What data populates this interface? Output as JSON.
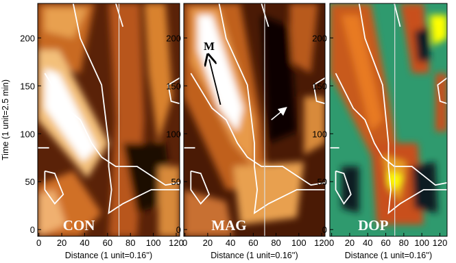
{
  "chart_data": [
    {
      "type": "heatmap",
      "title": "CON",
      "xlabel": "Distance (1 unit=0.16'')",
      "ylabel": "Time (1 unit=2.5 min)",
      "xlim": [
        -1,
        123
      ],
      "xticks": [
        0,
        20,
        40,
        60,
        80,
        100,
        120
      ],
      "ylim": [
        -7,
        236
      ],
      "yticks": [
        0,
        50,
        100,
        150,
        200
      ],
      "vline": 70
    },
    {
      "type": "heatmap",
      "title": "MAG",
      "xlabel": "Distance (1 unit=0.16'')",
      "annotation": "M",
      "xlim": [
        -1,
        123
      ],
      "xticks": [
        0,
        20,
        40,
        60,
        80,
        100,
        120
      ],
      "ylim": [
        -7,
        236
      ],
      "yticks": [
        0,
        50,
        100,
        150,
        200
      ],
      "vline": 70
    },
    {
      "type": "heatmap",
      "title": "DOP",
      "xlabel": "Distance (1 unit=0.16'')",
      "xlim": [
        -2,
        128
      ],
      "xticks": [
        0,
        20,
        40,
        60,
        80,
        100,
        120
      ],
      "ylim": [
        -7,
        236
      ],
      "yticks": [
        0,
        50,
        100,
        150,
        200
      ],
      "vline": 70
    }
  ]
}
